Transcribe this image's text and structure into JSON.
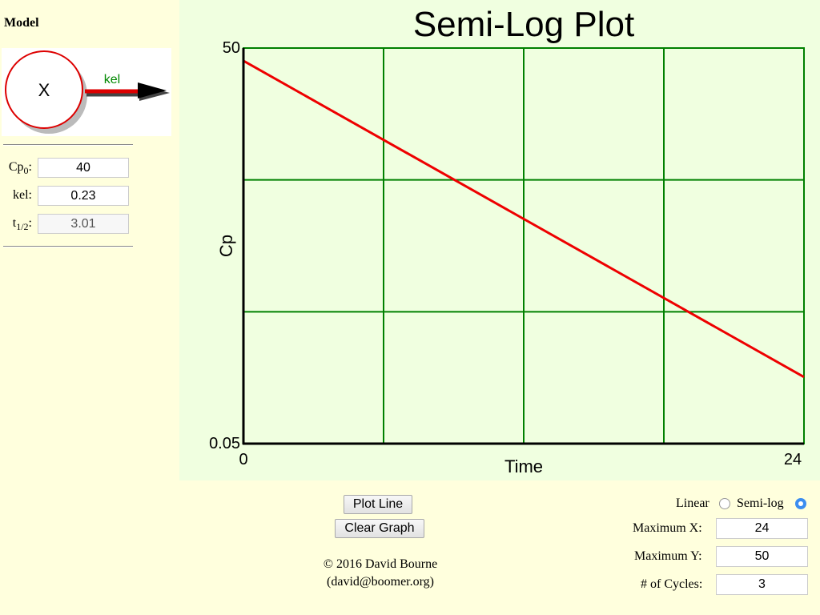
{
  "model": {
    "title": "Model",
    "compartment_label": "X",
    "arrow_label": "kel",
    "params": [
      {
        "label_main": "Cp",
        "label_sub": "0",
        "value": "40"
      },
      {
        "label_main": "kel",
        "label_sub": "",
        "value": "0.23"
      },
      {
        "label_main": "t",
        "label_sub": "1/2",
        "value": "3.01"
      }
    ]
  },
  "chart_data": {
    "type": "line",
    "title": "Semi-Log Plot",
    "xlabel": "Time",
    "ylabel": "Cp",
    "x_tick_labels": [
      "0",
      "24"
    ],
    "y_tick_labels": [
      "50",
      "0.05"
    ],
    "xlim": [
      0,
      24
    ],
    "ylim": [
      0.05,
      50
    ],
    "yscale": "log",
    "grid": true,
    "x_gridlines": 4,
    "log_cycles": 3,
    "series": [
      {
        "x": [
          0,
          24
        ],
        "y": [
          40,
          0.16
        ],
        "color": "#ee0000"
      }
    ],
    "colors": {
      "grid": "#008000",
      "background": "#f0ffe0",
      "axes": "#000000"
    }
  },
  "controls": {
    "plot_line": "Plot Line",
    "clear_graph": "Clear Graph",
    "copyright_line1": "© 2016 David Bourne",
    "copyright_line2": "(david@boomer.org)",
    "scale_options": [
      {
        "label": "Linear",
        "selected": false
      },
      {
        "label": "Semi-log",
        "selected": true
      }
    ],
    "max_x_label": "Maximum X:",
    "max_x": "24",
    "max_y_label": "Maximum Y:",
    "max_y": "50",
    "cycles_label": "# of Cycles:",
    "cycles": "3"
  }
}
